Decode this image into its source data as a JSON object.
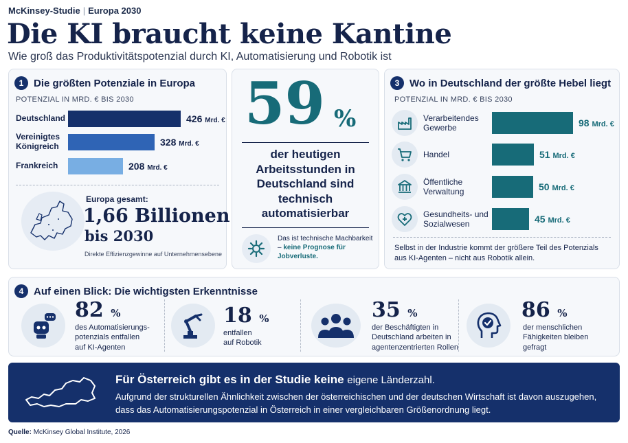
{
  "header": {
    "kicker_left": "McKinsey-Studie",
    "kicker_sep": "|",
    "kicker_right": "Europa 2030",
    "title": "Die KI braucht keine Kantine",
    "subtitle": "Wie groß das Produktivitätspotenzial durch KI, Automatisierung und Robotik ist"
  },
  "colors": {
    "navy": "#15306b",
    "teal": "#176b78",
    "bar_dark": "#15306b",
    "bar_mid": "#2f64b5",
    "bar_light": "#78aee3"
  },
  "card1": {
    "number": "1",
    "title": "Die größten Potenziale in Europa",
    "axis_caption": "POTENZIAL IN MRD. € BIS 2030",
    "europe_label": "Europa gesamt:",
    "europe_total": "1,66 Billionen €",
    "europe_year": "bis 2030",
    "europe_note": "Direkte Effizienzgewinne auf Unternehmensebene",
    "map_icon": "europe-map-icon"
  },
  "card2": {
    "big_number": "59",
    "big_unit": "%",
    "description": "der heutigen Arbeitsstunden in Deutschland sind technisch automatisierbar",
    "note_prefix": "Das ist technische Machbarkeit –",
    "note_highlight": "keine Prognose für Jobverluste.",
    "icon": "gear-icon"
  },
  "card3": {
    "number": "3",
    "title": "Wo in Deutschland der größte Hebel liegt",
    "axis_caption": "POTENZIAL IN MRD. € BIS 2030",
    "note": "Selbst in der Industrie kommt der größere Teil des Potenzials aus KI-Agenten – nicht aus Robotik allein."
  },
  "card4": {
    "number": "4",
    "title": "Auf einen Blick: Die wichtigsten Erkenntnisse",
    "kpis": [
      {
        "value": "82",
        "unit": "%",
        "desc_1": "des Automatisierungs-",
        "desc_2": "potenzials entfallen",
        "desc_3": "auf KI-Agenten",
        "icon": "robot-chat-icon"
      },
      {
        "value": "18",
        "unit": "%",
        "desc_1": "entfallen",
        "desc_2": "auf Robotik",
        "desc_3": "",
        "icon": "robot-arm-icon"
      },
      {
        "value": "35",
        "unit": "%",
        "desc_1": "der Beschäftigten in",
        "desc_2": "Deutschland arbeiten in",
        "desc_3": "agentenzentrierten Rollen",
        "icon": "people-group-icon"
      },
      {
        "value": "86",
        "unit": "%",
        "desc_1": "der menschlichen",
        "desc_2": "Fähigkeiten bleiben",
        "desc_3": "gefragt",
        "icon": "head-check-icon"
      }
    ]
  },
  "banner": {
    "title_bold": "Für Österreich gibt es in der Studie keine",
    "title_light": "eigene Länderzahl.",
    "text": "Aufgrund der strukturellen Ähnlichkeit zwischen der österreichischen und der deutschen Wirtschaft ist davon auszugehen, dass das Automatisierungspotenzial in Österreich in einer vergleichbaren Größenordnung liegt.",
    "icon": "austria-map-icon"
  },
  "source": {
    "label": "Quelle:",
    "text": "McKinsey Global Institute, 2026"
  },
  "chart_data": [
    {
      "type": "bar",
      "orientation": "horizontal",
      "title": "Die größten Potenziale in Europa",
      "xlabel": "POTENZIAL IN MRD. € BIS 2030",
      "categories": [
        "Deutschland",
        "Vereinigtes Königreich",
        "Frankreich"
      ],
      "values": [
        426,
        328,
        208
      ],
      "value_labels": [
        "426",
        "328",
        "208"
      ],
      "unit_label": "Mrd. €",
      "xlim": [
        0,
        426
      ]
    },
    {
      "type": "bar",
      "orientation": "horizontal",
      "title": "Wo in Deutschland der größte Hebel liegt",
      "xlabel": "POTENZIAL IN MRD. € BIS 2030",
      "categories": [
        "Verarbeitendes Gewerbe",
        "Handel",
        "Öffentliche Verwaltung",
        "Gesundheits- und Sozialwesen"
      ],
      "values": [
        98,
        51,
        50,
        45
      ],
      "value_labels": [
        "98",
        "51",
        "50",
        "45"
      ],
      "unit_label": "Mrd. €",
      "icons": [
        "factory-icon",
        "shopping-cart-icon",
        "government-building-icon",
        "heart-health-icon"
      ],
      "xlim": [
        0,
        98
      ]
    }
  ]
}
